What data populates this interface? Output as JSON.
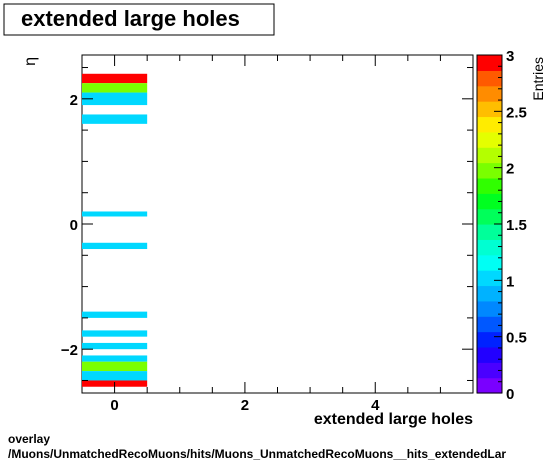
{
  "title": "extended large holes",
  "footer": {
    "line1": "overlay",
    "line2": "/Muons/UnmatchedRecoMuons/hits/Muons_UnmatchedRecoMuons__hits_extendedLar"
  },
  "chart_data": {
    "type": "heatmap",
    "title": "extended large holes",
    "xlabel": "extended large holes",
    "ylabel": "η",
    "zlabel": "Entries",
    "xlim": [
      -0.5,
      5.5
    ],
    "ylim": [
      -2.7,
      2.7
    ],
    "zlim": [
      0,
      3
    ],
    "x_ticks": [
      "0",
      "2",
      "4"
    ],
    "y_ticks": [
      "−2",
      "0",
      "2"
    ],
    "z_ticks": [
      "0",
      "0.5",
      "1",
      "1.5",
      "2",
      "2.5",
      "3"
    ],
    "x_bin": [
      -0.5,
      0.5
    ],
    "bins": [
      {
        "y": [
          2.25,
          2.4
        ],
        "entries": 3
      },
      {
        "y": [
          2.1,
          2.25
        ],
        "entries": 2
      },
      {
        "y": [
          1.9,
          2.1
        ],
        "entries": 1
      },
      {
        "y": [
          1.6,
          1.75
        ],
        "entries": 1
      },
      {
        "y": [
          0.12,
          0.2
        ],
        "entries": 1
      },
      {
        "y": [
          -0.4,
          -0.3
        ],
        "entries": 1
      },
      {
        "y": [
          -1.5,
          -1.4
        ],
        "entries": 1
      },
      {
        "y": [
          -1.8,
          -1.7
        ],
        "entries": 1
      },
      {
        "y": [
          -2.0,
          -1.9
        ],
        "entries": 1
      },
      {
        "y": [
          -2.2,
          -2.1
        ],
        "entries": 1
      },
      {
        "y": [
          -2.35,
          -2.2
        ],
        "entries": 2
      },
      {
        "y": [
          -2.5,
          -2.35
        ],
        "entries": 1
      },
      {
        "y": [
          -2.6,
          -2.5
        ],
        "entries": 3
      }
    ],
    "palette": [
      "#7a00ff",
      "#4a00ff",
      "#2200ff",
      "#0022ff",
      "#0058ff",
      "#0088ff",
      "#00b2ff",
      "#00d8ff",
      "#00fff4",
      "#00ffd2",
      "#00ff9a",
      "#00ff5a",
      "#00ff20",
      "#30ff00",
      "#7aff00",
      "#b4ff00",
      "#e4ff00",
      "#ffec00",
      "#ffbe00",
      "#ff8c00",
      "#ff5a00",
      "#ff0000"
    ]
  }
}
